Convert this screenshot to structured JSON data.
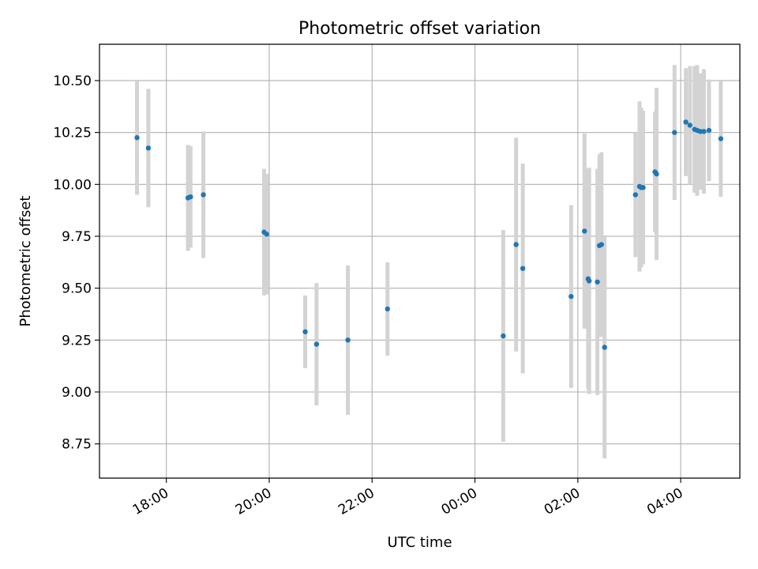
{
  "chart_data": {
    "type": "scatter",
    "title": "Photometric offset variation",
    "xlabel": "UTC time",
    "ylabel": "Photometric offset",
    "x_unit": "hours after 00:00 UTC of the first night",
    "xlim": [
      16.7,
      29.15
    ],
    "ylim": [
      8.585,
      10.675
    ],
    "grid": true,
    "x_ticks": [
      {
        "value": 18,
        "label": "18:00"
      },
      {
        "value": 20,
        "label": "20:00"
      },
      {
        "value": 22,
        "label": "22:00"
      },
      {
        "value": 24,
        "label": "00:00"
      },
      {
        "value": 26,
        "label": "02:00"
      },
      {
        "value": 28,
        "label": "04:00"
      }
    ],
    "y_ticks": [
      {
        "value": 8.75,
        "label": "8.75"
      },
      {
        "value": 9.0,
        "label": "9.00"
      },
      {
        "value": 9.25,
        "label": "9.25"
      },
      {
        "value": 9.5,
        "label": "9.50"
      },
      {
        "value": 9.75,
        "label": "9.75"
      },
      {
        "value": 10.0,
        "label": "10.00"
      },
      {
        "value": 10.25,
        "label": "10.25"
      },
      {
        "value": 10.5,
        "label": "10.50"
      }
    ],
    "colors": {
      "points": "#1f77b4",
      "errorbars": "#d3d3d3",
      "grid": "#b0b0b0",
      "axes": "#000000"
    },
    "points": [
      {
        "x": 17.43,
        "y": 10.225,
        "err": 0.275
      },
      {
        "x": 17.65,
        "y": 10.175,
        "err": 0.285
      },
      {
        "x": 18.42,
        "y": 9.935,
        "err": 0.255
      },
      {
        "x": 18.47,
        "y": 9.94,
        "err": 0.245
      },
      {
        "x": 18.72,
        "y": 9.95,
        "err": 0.305
      },
      {
        "x": 19.9,
        "y": 9.77,
        "err": 0.305
      },
      {
        "x": 19.95,
        "y": 9.76,
        "err": 0.29
      },
      {
        "x": 20.7,
        "y": 9.29,
        "err": 0.175
      },
      {
        "x": 20.92,
        "y": 9.23,
        "err": 0.295
      },
      {
        "x": 21.53,
        "y": 9.25,
        "err": 0.36
      },
      {
        "x": 22.3,
        "y": 9.4,
        "err": 0.225
      },
      {
        "x": 24.55,
        "y": 9.27,
        "err": 0.51
      },
      {
        "x": 24.8,
        "y": 9.71,
        "err": 0.515
      },
      {
        "x": 24.93,
        "y": 9.595,
        "err": 0.505
      },
      {
        "x": 26.13,
        "y": 9.775,
        "err": 0.47
      },
      {
        "x": 26.2,
        "y": 9.545,
        "err": 0.53
      },
      {
        "x": 26.22,
        "y": 9.535,
        "err": 0.545
      },
      {
        "x": 26.42,
        "y": 9.705,
        "err": 0.44
      },
      {
        "x": 26.46,
        "y": 9.71,
        "err": 0.445
      },
      {
        "x": 26.52,
        "y": 9.215,
        "err": 0.535
      },
      {
        "x": 25.87,
        "y": 9.46,
        "err": 0.44
      },
      {
        "x": 26.38,
        "y": 9.53,
        "err": 0.545
      },
      {
        "x": 27.12,
        "y": 9.95,
        "err": 0.3
      },
      {
        "x": 27.2,
        "y": 9.99,
        "err": 0.41
      },
      {
        "x": 27.23,
        "y": 9.985,
        "err": 0.385
      },
      {
        "x": 27.27,
        "y": 9.985,
        "err": 0.37
      },
      {
        "x": 27.5,
        "y": 10.06,
        "err": 0.29
      },
      {
        "x": 27.53,
        "y": 10.05,
        "err": 0.415
      },
      {
        "x": 27.88,
        "y": 10.25,
        "err": 0.325
      },
      {
        "x": 28.1,
        "y": 10.3,
        "err": 0.26
      },
      {
        "x": 28.18,
        "y": 10.285,
        "err": 0.285
      },
      {
        "x": 28.27,
        "y": 10.265,
        "err": 0.305
      },
      {
        "x": 28.32,
        "y": 10.26,
        "err": 0.315
      },
      {
        "x": 28.38,
        "y": 10.255,
        "err": 0.28
      },
      {
        "x": 28.45,
        "y": 10.255,
        "err": 0.3
      },
      {
        "x": 28.55,
        "y": 10.26,
        "err": 0.245
      },
      {
        "x": 28.78,
        "y": 10.22,
        "err": 0.28
      }
    ]
  }
}
